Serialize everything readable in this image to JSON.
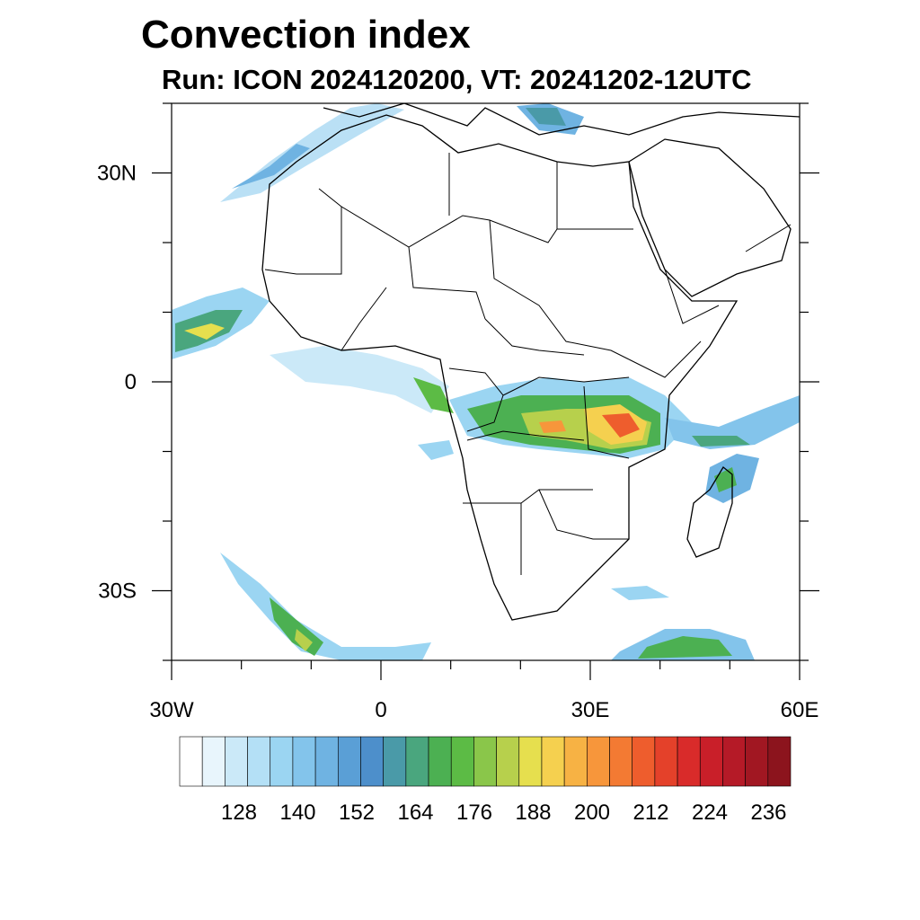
{
  "title": "Convection index",
  "subtitle": "Run: ICON 2024120200,  VT: 20241202-12UTC",
  "map": {
    "lon_range": [
      -30,
      60
    ],
    "lat_range": [
      -40,
      40
    ],
    "x_ticks": [
      "30W",
      "0",
      "30E",
      "60E"
    ],
    "y_ticks": [
      "30N",
      "0",
      "30S"
    ],
    "colors": {
      "coast": "#000000",
      "low": "#c7e6f7",
      "mid": "#3fa8d8",
      "high": "#4db84a",
      "peak": "#f0e442",
      "max": "#e23b2a"
    }
  },
  "colorbar": {
    "labels": [
      "128",
      "140",
      "152",
      "164",
      "176",
      "188",
      "200",
      "212",
      "224",
      "236"
    ],
    "colors": [
      "#ffffff",
      "#e8f5fc",
      "#cbe9f8",
      "#b4e0f6",
      "#9bd5f2",
      "#83c4eb",
      "#6fb3e2",
      "#5a9fd6",
      "#4d8fcb",
      "#4a9aa8",
      "#4aa67e",
      "#4cb052",
      "#5cbb45",
      "#8ac64a",
      "#b7d04c",
      "#e6df4e",
      "#f5d04f",
      "#f7b244",
      "#f7963b",
      "#f37a33",
      "#ee5d2d",
      "#e4412a",
      "#d92b2a",
      "#c91f29",
      "#b51a27",
      "#a11722",
      "#8c141d"
    ]
  }
}
